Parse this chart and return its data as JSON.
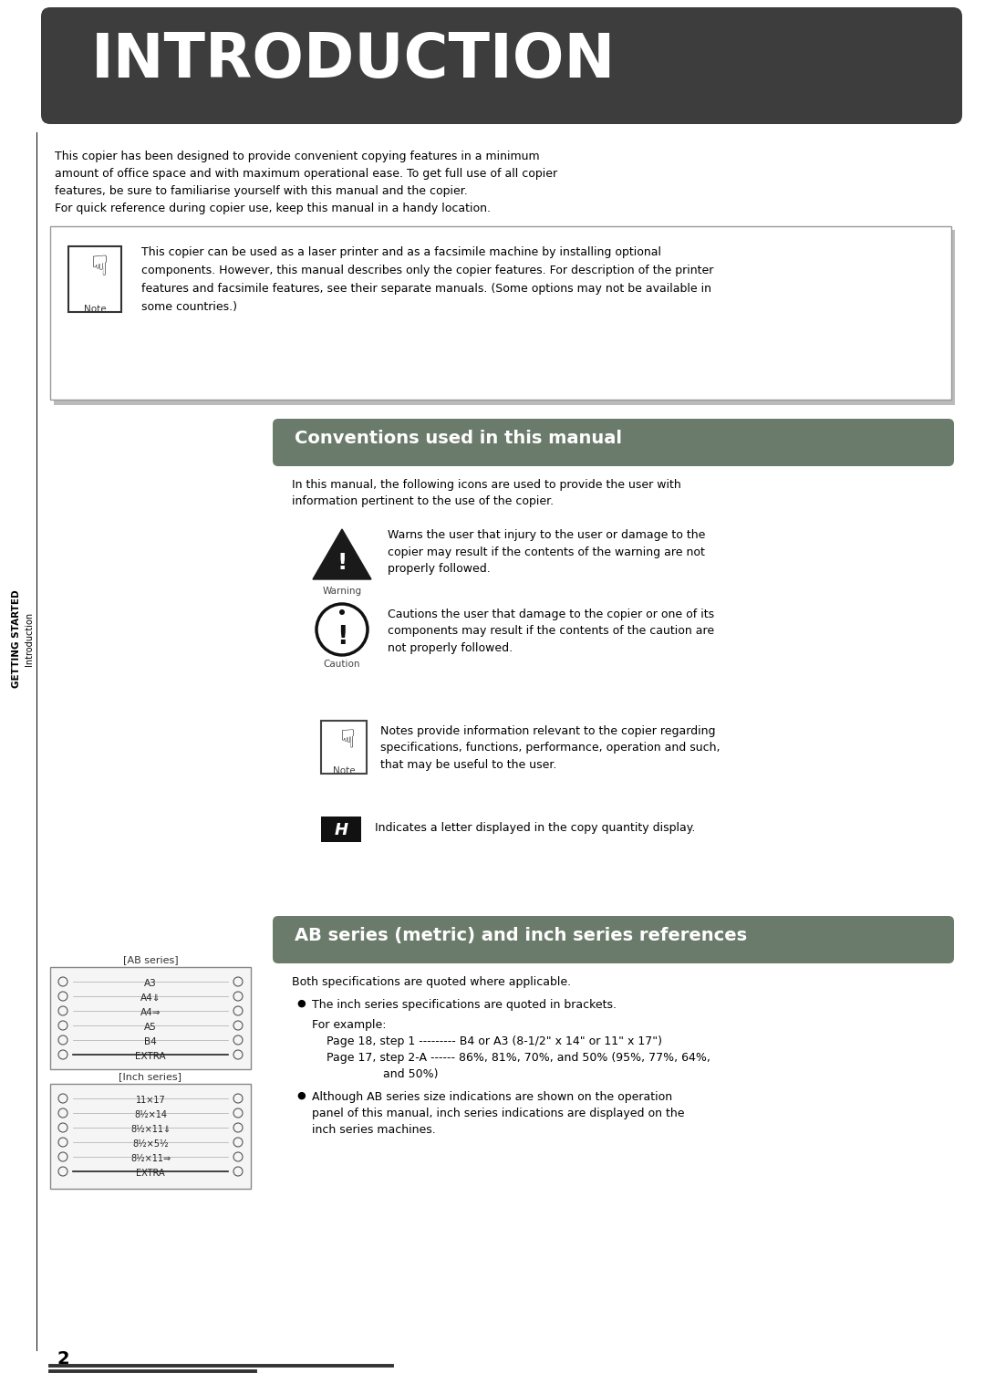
{
  "bg_color": "#ffffff",
  "header_bg": "#3d3d3d",
  "header_text": "INTRODUCTION",
  "header_text_color": "#ffffff",
  "section_color": "#6b7b6b",
  "sidebar_text": "GETTING STARTED",
  "sidebar_text2": "Introduction",
  "intro_body_lines": [
    "This copier has been designed to provide convenient copying features in a minimum",
    "amount of office space and with maximum operational ease. To get full use of all copier",
    "features, be sure to familiarise yourself with this manual and the copier.",
    "For quick reference during copier use, keep this manual in a handy location."
  ],
  "note_box_text_lines": [
    "This copier can be used as a laser printer and as a facsimile machine by installing optional",
    "components. However, this manual describes only the copier features. For description of the printer",
    "features and facsimile features, see their separate manuals. (Some options may not be available in",
    "some countries.)"
  ],
  "section1_title": "Conventions used in this manual",
  "conventions_intro_lines": [
    "In this manual, the following icons are used to provide the user with",
    "information pertinent to the use of the copier."
  ],
  "warning_text_lines": [
    "Warns the user that injury to the user or damage to the",
    "copier may result if the contents of the warning are not",
    "properly followed."
  ],
  "caution_text_lines": [
    "Cautions the user that damage to the copier or one of its",
    "components may result if the contents of the caution are",
    "not properly followed."
  ],
  "note_icon_text_lines": [
    "Notes provide information relevant to the copier regarding",
    "specifications, functions, performance, operation and such,",
    "that may be useful to the user."
  ],
  "letter_text": "Indicates a letter displayed in the copy quantity display.",
  "section2_title": "AB series (metric) and inch series references",
  "ab_both_specs": "Both specifications are quoted where applicable.",
  "ab_bullet1": "The inch series specifications are quoted in brackets.",
  "ab_example": "For example:",
  "ab_page18": "Page 18, step 1 --------- B4 or A3 (8-1/2\" x 14\" or 11\" x 17\")",
  "ab_page17": "Page 17, step 2-A ------ 86%, 81%, 70%, and 50% (95%, 77%, 64%,",
  "ab_page17b": "and 50%)",
  "ab_bullet2_lines": [
    "Although AB series size indications are shown on the operation",
    "panel of this manual, inch series indications are displayed on the",
    "inch series machines."
  ],
  "ab_series_items": [
    "A3",
    "A4⇓",
    "A4⇒",
    "A5",
    "B4",
    "EXTRA"
  ],
  "inch_series_items": [
    "11×17",
    "8½×14",
    "8½×11⇓",
    "8½×5½",
    "8½×11⇒",
    "EXTRA"
  ],
  "footer_text": "2"
}
